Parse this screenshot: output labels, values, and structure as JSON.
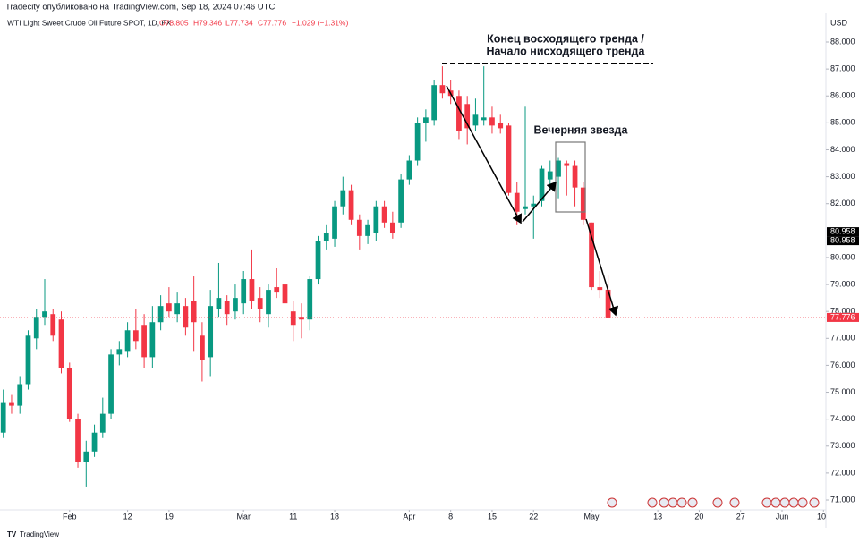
{
  "header": "Tradecity опубликовано на TradingView.com, Sep 18, 2024 07:46 UTC",
  "legend": {
    "symbol": "WTI Light Sweet Crude Oil Future SPOT, 1D, FX",
    "open": "O78.805",
    "high": "H79.346",
    "low": "L77.734",
    "close": "C77.776",
    "change": "−1.029 (−1.31%)"
  },
  "currency": "USD",
  "brand": "TradingView",
  "chart_data": {
    "type": "candlestick",
    "annotations": [
      "Конец восходящего тренда /",
      "Начало нисходящего тренда",
      "Вечерняя звезда"
    ],
    "x": [
      0,
      1,
      2,
      3,
      4,
      5,
      6,
      7,
      8,
      9,
      10,
      11,
      12,
      13,
      14,
      15,
      16,
      17,
      18,
      19,
      20,
      21,
      22,
      23,
      24,
      25,
      26,
      27,
      28,
      29,
      30,
      31,
      32,
      33,
      34,
      35,
      36,
      37,
      38,
      39,
      40,
      41,
      42,
      43,
      44,
      45,
      46,
      47,
      48,
      49,
      50,
      51,
      52,
      53,
      54,
      55,
      56,
      57,
      58,
      59,
      60,
      61,
      62,
      63,
      64,
      65,
      66,
      67,
      68,
      69,
      70,
      71,
      72,
      73
    ],
    "open": [
      73.5,
      74.6,
      74.5,
      75.3,
      77.0,
      77.8,
      77.9,
      77.7,
      75.9,
      74.0,
      72.4,
      72.8,
      73.5,
      74.2,
      76.4,
      76.5,
      77.3,
      77.5,
      76.3,
      77.6,
      78.3,
      77.9,
      78.2,
      78.4,
      77.1,
      76.3,
      78.1,
      78.4,
      78.0,
      78.3,
      79.2,
      78.5,
      77.9,
      78.9,
      79.0,
      78.0,
      77.8,
      77.7,
      79.2,
      80.6,
      80.7,
      81.9,
      82.5,
      81.4,
      80.8,
      80.9,
      81.9,
      81.3,
      81.3,
      82.9,
      83.6,
      85.0,
      85.1,
      86.4,
      86.2,
      86.0,
      85.7,
      84.9,
      85.1,
      85.2,
      85.0,
      84.9,
      82.4,
      81.8,
      81.9,
      82.1,
      82.9,
      83.0,
      83.5,
      83.4,
      82.6,
      81.3,
      78.9,
      78.805
    ],
    "high": [
      75.1,
      74.9,
      75.6,
      77.3,
      78.1,
      79.2,
      78.1,
      78.0,
      76.1,
      74.2,
      73.2,
      73.8,
      74.8,
      76.6,
      76.9,
      77.6,
      78.1,
      77.9,
      78.2,
      78.6,
      78.9,
      78.7,
      78.5,
      79.3,
      77.6,
      78.8,
      79.8,
      78.6,
      79.0,
      79.5,
      80.3,
      78.9,
      79.0,
      79.6,
      80.0,
      78.4,
      78.3,
      79.3,
      80.8,
      81.2,
      82.1,
      83.0,
      82.7,
      81.6,
      81.4,
      82.1,
      82.1,
      81.7,
      83.1,
      83.8,
      85.2,
      85.5,
      86.6,
      87.1,
      86.6,
      86.2,
      86.0,
      85.9,
      87.1,
      85.6,
      85.3,
      85.0,
      82.8,
      85.6,
      82.3,
      83.4,
      83.6,
      83.7,
      83.6,
      83.6,
      82.8,
      81.3,
      79.5,
      79.346
    ],
    "low": [
      73.3,
      74.2,
      74.2,
      75.1,
      76.6,
      77.5,
      76.9,
      75.7,
      73.9,
      72.2,
      71.5,
      72.6,
      73.3,
      74.0,
      76.0,
      76.3,
      76.6,
      75.9,
      75.9,
      77.3,
      77.8,
      77.6,
      77.1,
      76.5,
      75.4,
      75.6,
      77.8,
      77.5,
      77.7,
      77.9,
      78.1,
      77.6,
      77.4,
      78.5,
      77.7,
      76.9,
      77.0,
      77.3,
      79.0,
      80.3,
      80.4,
      81.6,
      81.2,
      80.3,
      80.5,
      80.6,
      81.1,
      80.7,
      81.1,
      82.7,
      83.4,
      84.3,
      84.9,
      85.9,
      85.7,
      84.4,
      84.2,
      84.7,
      84.9,
      84.6,
      84.6,
      82.3,
      81.2,
      81.6,
      80.7,
      81.9,
      82.5,
      82.2,
      82.3,
      81.9,
      81.2,
      78.8,
      78.5,
      77.734
    ],
    "close": [
      74.6,
      74.5,
      75.3,
      77.1,
      77.8,
      78.0,
      77.1,
      75.9,
      74.0,
      72.4,
      72.8,
      73.5,
      74.2,
      76.4,
      76.6,
      77.3,
      76.9,
      76.3,
      77.6,
      78.2,
      78.0,
      78.3,
      77.4,
      77.6,
      76.2,
      78.2,
      78.5,
      77.9,
      78.5,
      79.2,
      78.4,
      78.1,
      78.8,
      78.7,
      78.3,
      77.5,
      77.7,
      79.2,
      80.6,
      80.9,
      81.9,
      82.5,
      81.4,
      80.8,
      81.2,
      81.9,
      81.3,
      80.9,
      82.9,
      83.6,
      85.0,
      85.2,
      86.4,
      86.1,
      86.0,
      84.7,
      84.8,
      85.3,
      85.2,
      84.9,
      84.8,
      82.4,
      81.7,
      81.9,
      82.0,
      83.3,
      83.2,
      83.6,
      83.4,
      82.6,
      81.4,
      78.9,
      78.8,
      77.776
    ],
    "up_color": "#089981",
    "down_color": "#f23645",
    "xlim": [
      -0.4,
      99.4
    ],
    "xticks": [
      {
        "value": 8,
        "label": "Feb"
      },
      {
        "value": 15,
        "label": "12"
      },
      {
        "value": 20,
        "label": "19"
      },
      {
        "value": 29,
        "label": "Mar"
      },
      {
        "value": 35,
        "label": "11"
      },
      {
        "value": 40,
        "label": "18"
      },
      {
        "value": 49,
        "label": "Apr"
      },
      {
        "value": 54,
        "label": "8"
      },
      {
        "value": 59,
        "label": "15"
      },
      {
        "value": 64,
        "label": "22"
      },
      {
        "value": 71,
        "label": "May"
      },
      {
        "value": 79,
        "label": "13"
      },
      {
        "value": 84,
        "label": "20"
      },
      {
        "value": 89,
        "label": "27"
      },
      {
        "value": 94,
        "label": "Jun"
      },
      {
        "value": 99,
        "label": "10"
      }
    ],
    "ylim": [
      70.635,
      89.096
    ],
    "yticks": [
      {
        "value": 88,
        "label": "88.000"
      },
      {
        "value": 87,
        "label": "87.000"
      },
      {
        "value": 86,
        "label": "86.000"
      },
      {
        "value": 85,
        "label": "85.000"
      },
      {
        "value": 84,
        "label": "84.000"
      },
      {
        "value": 83,
        "label": "83.000"
      },
      {
        "value": 82,
        "label": "82.000"
      },
      {
        "value": 80,
        "label": "80.000"
      },
      {
        "value": 79,
        "label": "79.000"
      },
      {
        "value": 78,
        "label": "78.000"
      },
      {
        "value": 77,
        "label": "77.000"
      },
      {
        "value": 76,
        "label": "76.000"
      },
      {
        "value": 75,
        "label": "75.000"
      },
      {
        "value": 74,
        "label": "74.000"
      },
      {
        "value": 73,
        "label": "73.000"
      },
      {
        "value": 72,
        "label": "72.000"
      },
      {
        "value": 71,
        "label": "71.000"
      }
    ],
    "price_labels": [
      {
        "value": 80.958,
        "label": "80.958",
        "color": "#000000"
      },
      {
        "value": 80.958,
        "label": "80.958",
        "color": "#000000"
      },
      {
        "value": 77.776,
        "label": "77.776",
        "color": "#f23645"
      }
    ],
    "grid": false
  }
}
